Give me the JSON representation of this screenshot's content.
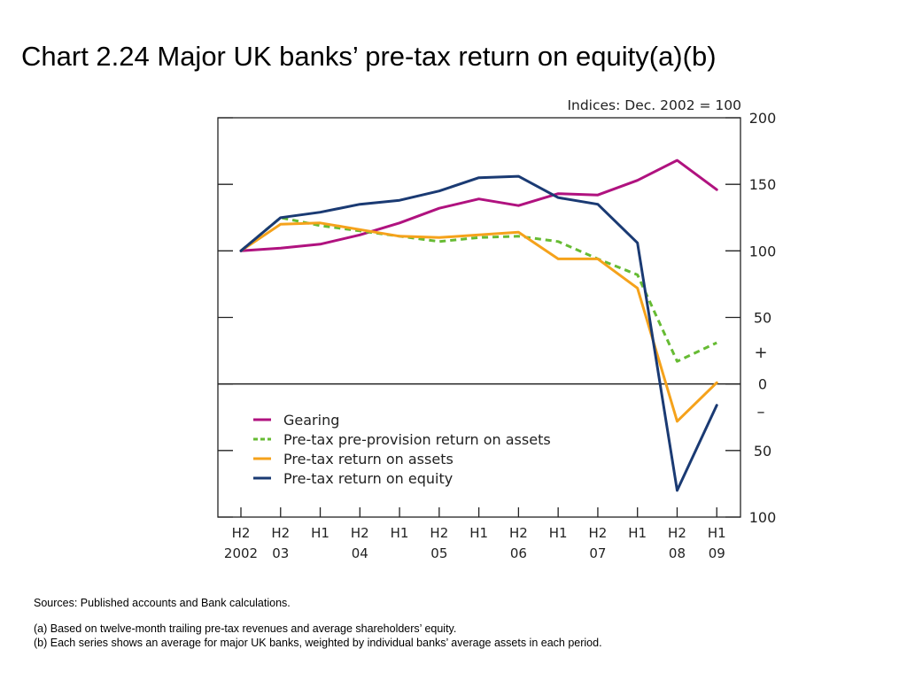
{
  "page": {
    "title": "Chart 2.24  Major UK banks’ pre-tax return on equity(a)(b)",
    "sources": "Sources:  Published accounts and Bank calculations.",
    "note_a": "(a)  Based on twelve-month trailing pre-tax revenues and average shareholders’ equity.",
    "note_b": "(b)  Each series shows an average for major UK banks, weighted by individual banks’ average assets in each period."
  },
  "colors": {
    "gearing": "#b0127f",
    "preprovision": "#66bb33",
    "roa": "#f5a21b",
    "roe": "#1a3a73",
    "axis": "#222222"
  },
  "chart_data": {
    "type": "line",
    "axis_title": "Indices:  Dec. 2002 = 100",
    "ylim": [
      -100,
      200
    ],
    "yticks": [
      200,
      150,
      100,
      50,
      0,
      -50,
      -100
    ],
    "ytick_labels": [
      "200",
      "150",
      "100",
      "50",
      "0",
      "50",
      "100"
    ],
    "sign_plus": "+",
    "sign_minus": "–",
    "x_labels": [
      {
        "line1": "H2",
        "line2": "2002"
      },
      {
        "line1": "H2",
        "line2": "03"
      },
      {
        "line1": "H1",
        "line2": ""
      },
      {
        "line1": "H2",
        "line2": "04"
      },
      {
        "line1": "H1",
        "line2": ""
      },
      {
        "line1": "H2",
        "line2": "05"
      },
      {
        "line1": "H1",
        "line2": ""
      },
      {
        "line1": "H2",
        "line2": "06"
      },
      {
        "line1": "H1",
        "line2": ""
      },
      {
        "line1": "H2",
        "line2": "07"
      },
      {
        "line1": "H1",
        "line2": ""
      },
      {
        "line1": "H2",
        "line2": "08"
      },
      {
        "line1": "H1",
        "line2": "09"
      }
    ],
    "series": [
      {
        "name": "Gearing",
        "color_key": "gearing",
        "dashed": false,
        "values": [
          100,
          102,
          105,
          112,
          121,
          132,
          139,
          134,
          143,
          142,
          153,
          168,
          146
        ]
      },
      {
        "name": "Pre-tax pre-provision return on assets",
        "color_key": "preprovision",
        "dashed": true,
        "values": [
          100,
          125,
          119,
          115,
          111,
          107,
          110,
          111,
          107,
          94,
          82,
          17,
          31
        ]
      },
      {
        "name": "Pre-tax return on assets",
        "color_key": "roa",
        "dashed": false,
        "values": [
          100,
          120,
          121,
          116,
          111,
          110,
          112,
          114,
          94,
          94,
          72,
          -28,
          1
        ]
      },
      {
        "name": "Pre-tax return on equity",
        "color_key": "roe",
        "dashed": false,
        "values": [
          100,
          125,
          129,
          135,
          138,
          145,
          155,
          156,
          140,
          135,
          106,
          -80,
          -16
        ]
      }
    ],
    "legend_position": "lower-left"
  }
}
